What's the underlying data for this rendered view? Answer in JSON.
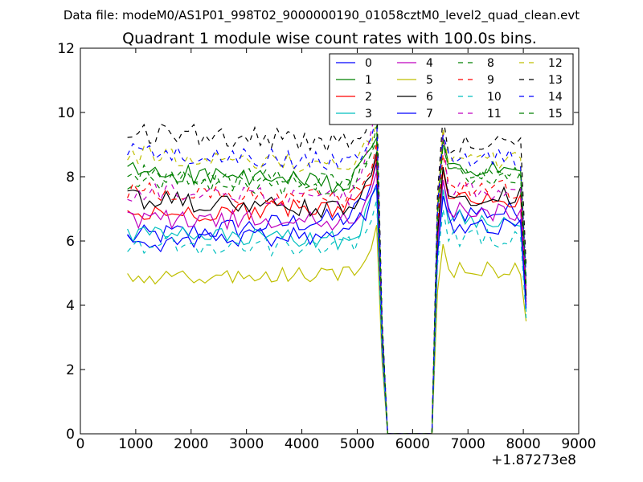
{
  "chart_data": {
    "type": "line",
    "suptitle": "Data file: modeM0/AS1P01_998T02_9000000190_01058cztM0_level2_quad_clean.evt",
    "title": "Quadrant 1 module wise count rates with 100.0s bins.",
    "xlabel": "",
    "ylabel": "",
    "xlim": [
      0,
      9000
    ],
    "ylim": [
      0,
      12
    ],
    "x_ticks": [
      "0",
      "1000",
      "2000",
      "3000",
      "4000",
      "5000",
      "6000",
      "7000",
      "8000",
      "9000"
    ],
    "y_ticks": [
      "0",
      "2",
      "4",
      "6",
      "8",
      "10",
      "12"
    ],
    "x_offset_label": "+1.87273e8",
    "legend_position": "top-right",
    "legend_columns": 4,
    "grid": false,
    "segment1": {
      "x_start": 850,
      "x_end": 5350,
      "step": 100
    },
    "segment2": {
      "x_start": 6550,
      "x_end": 8050,
      "step": 100
    },
    "gap_x": [
      5450,
      5550,
      6350,
      6450
    ],
    "series": [
      {
        "name": "0",
        "color": "#0000ff",
        "style": "solid",
        "s1_start": 6.1,
        "s1_end": 6.8,
        "s1_peak": 8.2,
        "s2_peak": 7.9,
        "s2_level": 6.9,
        "s2_end": 4.2,
        "noise": 0.35
      },
      {
        "name": "1",
        "color": "#008000",
        "style": "solid",
        "s1_start": 8.2,
        "s1_end": 7.7,
        "s1_peak": 9.4,
        "s2_peak": 9.2,
        "s2_level": 8.2,
        "s2_end": 4.6,
        "noise": 0.3
      },
      {
        "name": "2",
        "color": "#ff0000",
        "style": "solid",
        "s1_start": 6.8,
        "s1_end": 7.1,
        "s1_peak": 8.4,
        "s2_peak": 8.2,
        "s2_level": 7.3,
        "s2_end": 4.1,
        "noise": 0.3
      },
      {
        "name": "3",
        "color": "#00bfbf",
        "style": "solid",
        "s1_start": 6.2,
        "s1_end": 6.0,
        "s1_peak": 7.7,
        "s2_peak": 7.6,
        "s2_level": 6.7,
        "s2_end": 3.8,
        "noise": 0.3
      },
      {
        "name": "4",
        "color": "#bf00bf",
        "style": "solid",
        "s1_start": 6.7,
        "s1_end": 6.6,
        "s1_peak": 8.0,
        "s2_peak": 7.9,
        "s2_level": 6.9,
        "s2_end": 4.0,
        "noise": 0.3
      },
      {
        "name": "5",
        "color": "#bfbf00",
        "style": "solid",
        "s1_start": 4.8,
        "s1_end": 5.0,
        "s1_peak": 6.4,
        "s2_peak": 5.9,
        "s2_level": 5.1,
        "s2_end": 3.5,
        "noise": 0.25
      },
      {
        "name": "6",
        "color": "#000000",
        "style": "solid",
        "s1_start": 7.3,
        "s1_end": 6.9,
        "s1_peak": 8.5,
        "s2_peak": 8.3,
        "s2_level": 7.4,
        "s2_end": 4.3,
        "noise": 0.3
      },
      {
        "name": "7",
        "color": "#0000ff",
        "style": "solid",
        "s1_start": 5.9,
        "s1_end": 6.3,
        "s1_peak": 7.6,
        "s2_peak": 7.4,
        "s2_level": 6.5,
        "s2_end": 3.9,
        "noise": 0.3
      },
      {
        "name": "8",
        "color": "#008000",
        "style": "dashed",
        "s1_start": 7.9,
        "s1_end": 7.6,
        "s1_peak": 9.3,
        "s2_peak": 9.0,
        "s2_level": 8.0,
        "s2_end": 4.6,
        "noise": 0.3
      },
      {
        "name": "9",
        "color": "#ff0000",
        "style": "dashed",
        "s1_start": 7.6,
        "s1_end": 7.3,
        "s1_peak": 8.9,
        "s2_peak": 8.7,
        "s2_level": 7.6,
        "s2_end": 4.4,
        "noise": 0.3
      },
      {
        "name": "10",
        "color": "#00bfbf",
        "style": "dashed",
        "s1_start": 5.9,
        "s1_end": 5.8,
        "s1_peak": 7.1,
        "s2_peak": 7.0,
        "s2_level": 6.1,
        "s2_end": 3.6,
        "noise": 0.3
      },
      {
        "name": "11",
        "color": "#bf00bf",
        "style": "dashed",
        "s1_start": 7.5,
        "s1_end": 7.3,
        "s1_peak": 9.9,
        "s2_peak": 9.4,
        "s2_level": 7.6,
        "s2_end": 4.4,
        "noise": 0.3
      },
      {
        "name": "12",
        "color": "#bfbf00",
        "style": "dashed",
        "s1_start": 8.7,
        "s1_end": 8.3,
        "s1_peak": 9.6,
        "s2_peak": 9.5,
        "s2_level": 8.5,
        "s2_end": 4.8,
        "noise": 0.3
      },
      {
        "name": "13",
        "color": "#000000",
        "style": "dashed",
        "s1_start": 9.4,
        "s1_end": 9.0,
        "s1_peak": 10.2,
        "s2_peak": 9.9,
        "s2_level": 9.0,
        "s2_end": 5.2,
        "noise": 0.35
      },
      {
        "name": "14",
        "color": "#0000ff",
        "style": "dashed",
        "s1_start": 8.8,
        "s1_end": 8.4,
        "s1_peak": 9.8,
        "s2_peak": 9.3,
        "s2_level": 8.6,
        "s2_end": 4.9,
        "noise": 0.3
      },
      {
        "name": "15",
        "color": "#008000",
        "style": "dashed",
        "s1_start": 8.1,
        "s1_end": 7.8,
        "s1_peak": 9.4,
        "s2_peak": 9.1,
        "s2_level": 8.1,
        "s2_end": 4.7,
        "noise": 0.3
      }
    ]
  }
}
